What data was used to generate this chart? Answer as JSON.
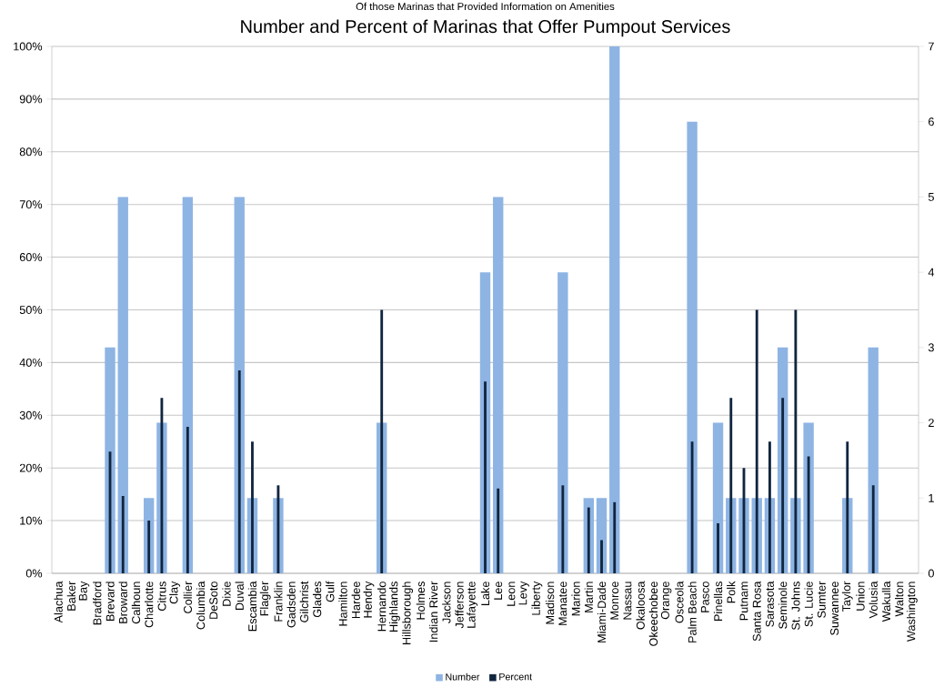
{
  "chart_data": {
    "type": "bar",
    "subtitle": "Of those Marinas that Provided Information on Amenities",
    "title": "Number and Percent of Marinas that Offer Pumpout Services",
    "categories": [
      "Alachua",
      "Baker",
      "Bay",
      "Bradford",
      "Brevard",
      "Broward",
      "Calhoun",
      "Charlotte",
      "Citrus",
      "Clay",
      "Collier",
      "Columbia",
      "DeSoto",
      "Dixie",
      "Duval",
      "Escambia",
      "Flagler",
      "Franklin",
      "Gadsden",
      "Gilchrist",
      "Glades",
      "Gulf",
      "Hamilton",
      "Hardee",
      "Hendry",
      "Hernando",
      "Highlands",
      "Hillsborough",
      "Holmes",
      "Indian River",
      "Jackson",
      "Jefferson",
      "Lafayette",
      "Lake",
      "Lee",
      "Leon",
      "Levy",
      "Liberty",
      "Madison",
      "Manatee",
      "Marion",
      "Martin",
      "Miami-Dade",
      "Monroe",
      "Nassau",
      "Okaloosa",
      "Okeechobee",
      "Orange",
      "Osceola",
      "Palm Beach",
      "Pasco",
      "Pinellas",
      "Polk",
      "Putnam",
      "Santa Rosa",
      "Sarasota",
      "Seminole",
      "St. Johns",
      "St. Lucie",
      "Sumter",
      "Suwannee",
      "Taylor",
      "Union",
      "Volusia",
      "Wakulla",
      "Walton",
      "Washington"
    ],
    "series": [
      {
        "name": "Number",
        "color": "#8eb4e3",
        "axis": "y2",
        "values": [
          0,
          0,
          0,
          0,
          3,
          5,
          0,
          1,
          2,
          0,
          5,
          0,
          0,
          0,
          5,
          1,
          0,
          1,
          0,
          0,
          0,
          0,
          0,
          0,
          0,
          2,
          0,
          0,
          0,
          0,
          0,
          0,
          0,
          4,
          5,
          0,
          0,
          0,
          0,
          4,
          0,
          1,
          1,
          7,
          0,
          0,
          0,
          0,
          0,
          6,
          0,
          2,
          1,
          1,
          1,
          1,
          3,
          1,
          2,
          0,
          0,
          1,
          0,
          3,
          0,
          0,
          0
        ]
      },
      {
        "name": "Percent",
        "color": "#10253f",
        "values": [
          0,
          0,
          0,
          0,
          23.1,
          14.7,
          0,
          10,
          33.3,
          0,
          27.8,
          0,
          0,
          0,
          38.5,
          25,
          0,
          16.7,
          0,
          0,
          0,
          0,
          0,
          0,
          0,
          50,
          0,
          0,
          0,
          0,
          0,
          0,
          0,
          36.4,
          16.1,
          0,
          0,
          0,
          0,
          16.7,
          0,
          12.5,
          6.3,
          13.5,
          0,
          0,
          0,
          0,
          0,
          25,
          0,
          9.5,
          33.3,
          20,
          50,
          25,
          33.3,
          50,
          22.2,
          0,
          0,
          25,
          0,
          16.7,
          0,
          0,
          0
        ]
      }
    ],
    "ylim": [
      0,
      100
    ],
    "yticks": [
      {
        "value": 0,
        "label": "0%"
      },
      {
        "value": 10,
        "label": "10%"
      },
      {
        "value": 20,
        "label": "20%"
      },
      {
        "value": 30,
        "label": "30%"
      },
      {
        "value": 40,
        "label": "40%"
      },
      {
        "value": 50,
        "label": "50%"
      },
      {
        "value": 60,
        "label": "60%"
      },
      {
        "value": 70,
        "label": "70%"
      },
      {
        "value": 80,
        "label": "80%"
      },
      {
        "value": 90,
        "label": "90%"
      },
      {
        "value": 100,
        "label": "100%"
      }
    ],
    "y2lim": [
      0,
      7
    ],
    "y2ticks": [
      0,
      1,
      2,
      3,
      4,
      5,
      6,
      7
    ],
    "grid": "y",
    "legend": "bottom"
  }
}
